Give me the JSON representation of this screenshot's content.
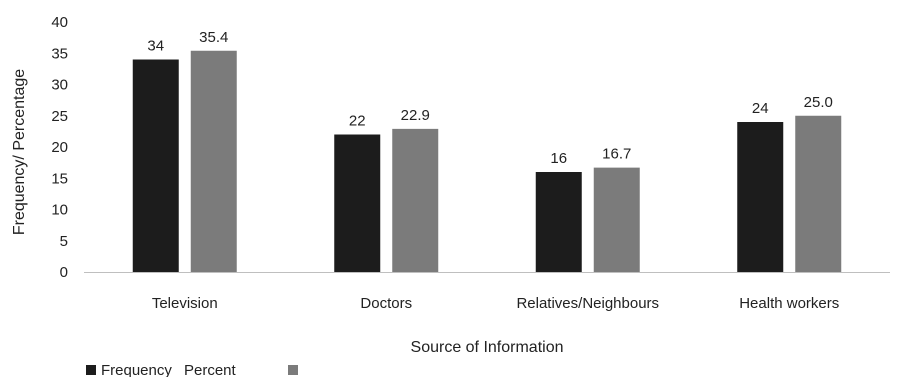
{
  "chart_data": {
    "type": "bar",
    "categories": [
      "Television",
      "Doctors",
      "Relatives/Neighbours",
      "Health workers"
    ],
    "series": [
      {
        "name": "Frequency",
        "values": [
          34,
          22,
          16,
          24
        ],
        "labels": [
          "34",
          "22",
          "16",
          "24"
        ],
        "color": "#1c1c1c"
      },
      {
        "name": "Percent",
        "values": [
          35.4,
          22.9,
          16.7,
          25.0
        ],
        "labels": [
          "35.4",
          "22.9",
          "16.7",
          "25.0"
        ],
        "color": "#7b7b7b"
      }
    ],
    "xlabel": "Source of Information",
    "ylabel": "Frequency/ Percentage",
    "ylim": [
      0,
      40
    ],
    "yticks": [
      "0",
      "5",
      "10",
      "15",
      "20",
      "25",
      "30",
      "35",
      "40"
    ],
    "grid": false,
    "legend": "bottom-left",
    "axis_color": "#bfbfbf"
  }
}
